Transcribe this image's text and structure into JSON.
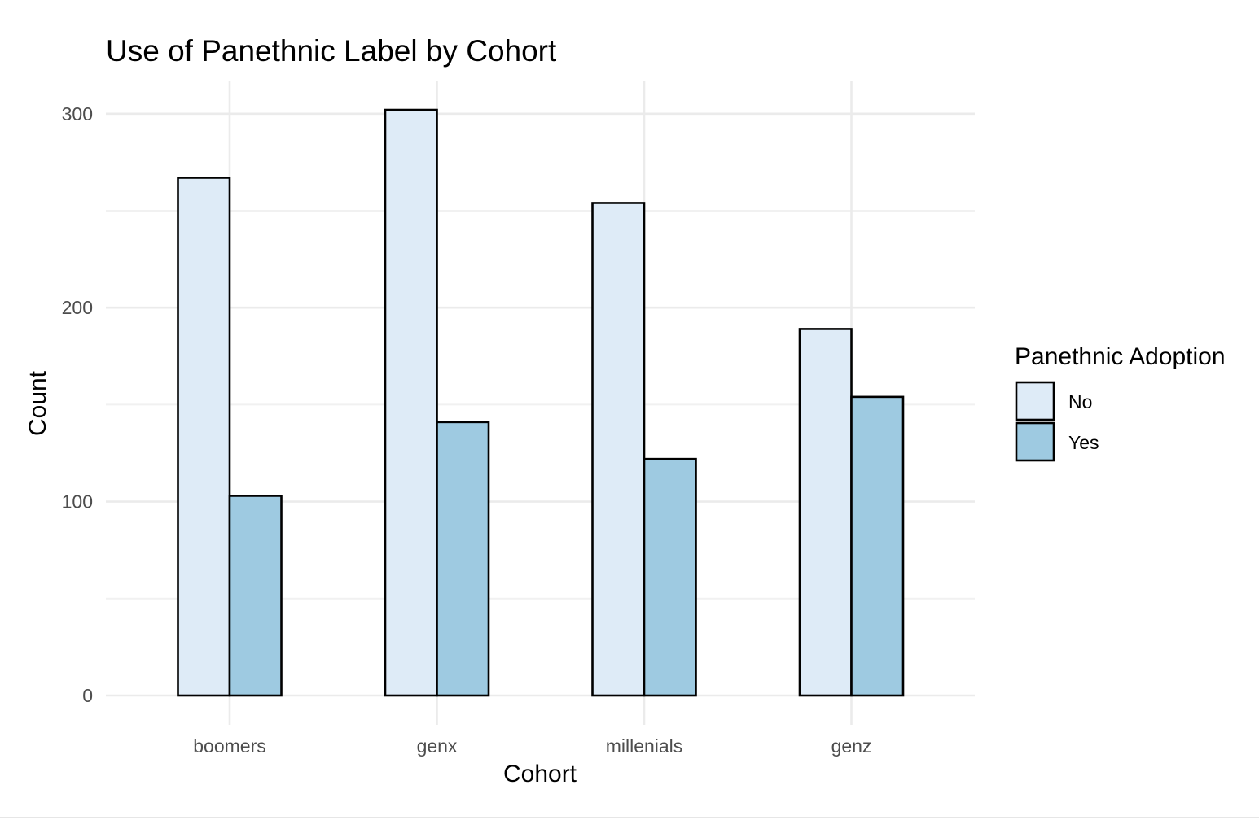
{
  "chart_data": {
    "type": "bar",
    "title": "Use of Panethnic Label by Cohort",
    "xlabel": "Cohort",
    "ylabel": "Count",
    "categories": [
      "boomers",
      "genx",
      "millenials",
      "genz"
    ],
    "series": [
      {
        "name": "No",
        "values": [
          267,
          302,
          254,
          189
        ],
        "color": "#deebf7"
      },
      {
        "name": "Yes",
        "values": [
          103,
          141,
          122,
          154
        ],
        "color": "#9ecae1"
      }
    ],
    "ylim": [
      0,
      315
    ],
    "yticks": [
      0,
      100,
      200,
      300
    ],
    "grid": true,
    "legend": {
      "title": "Panethnic Adoption",
      "position": "right"
    },
    "bar_outline": "#000000"
  }
}
